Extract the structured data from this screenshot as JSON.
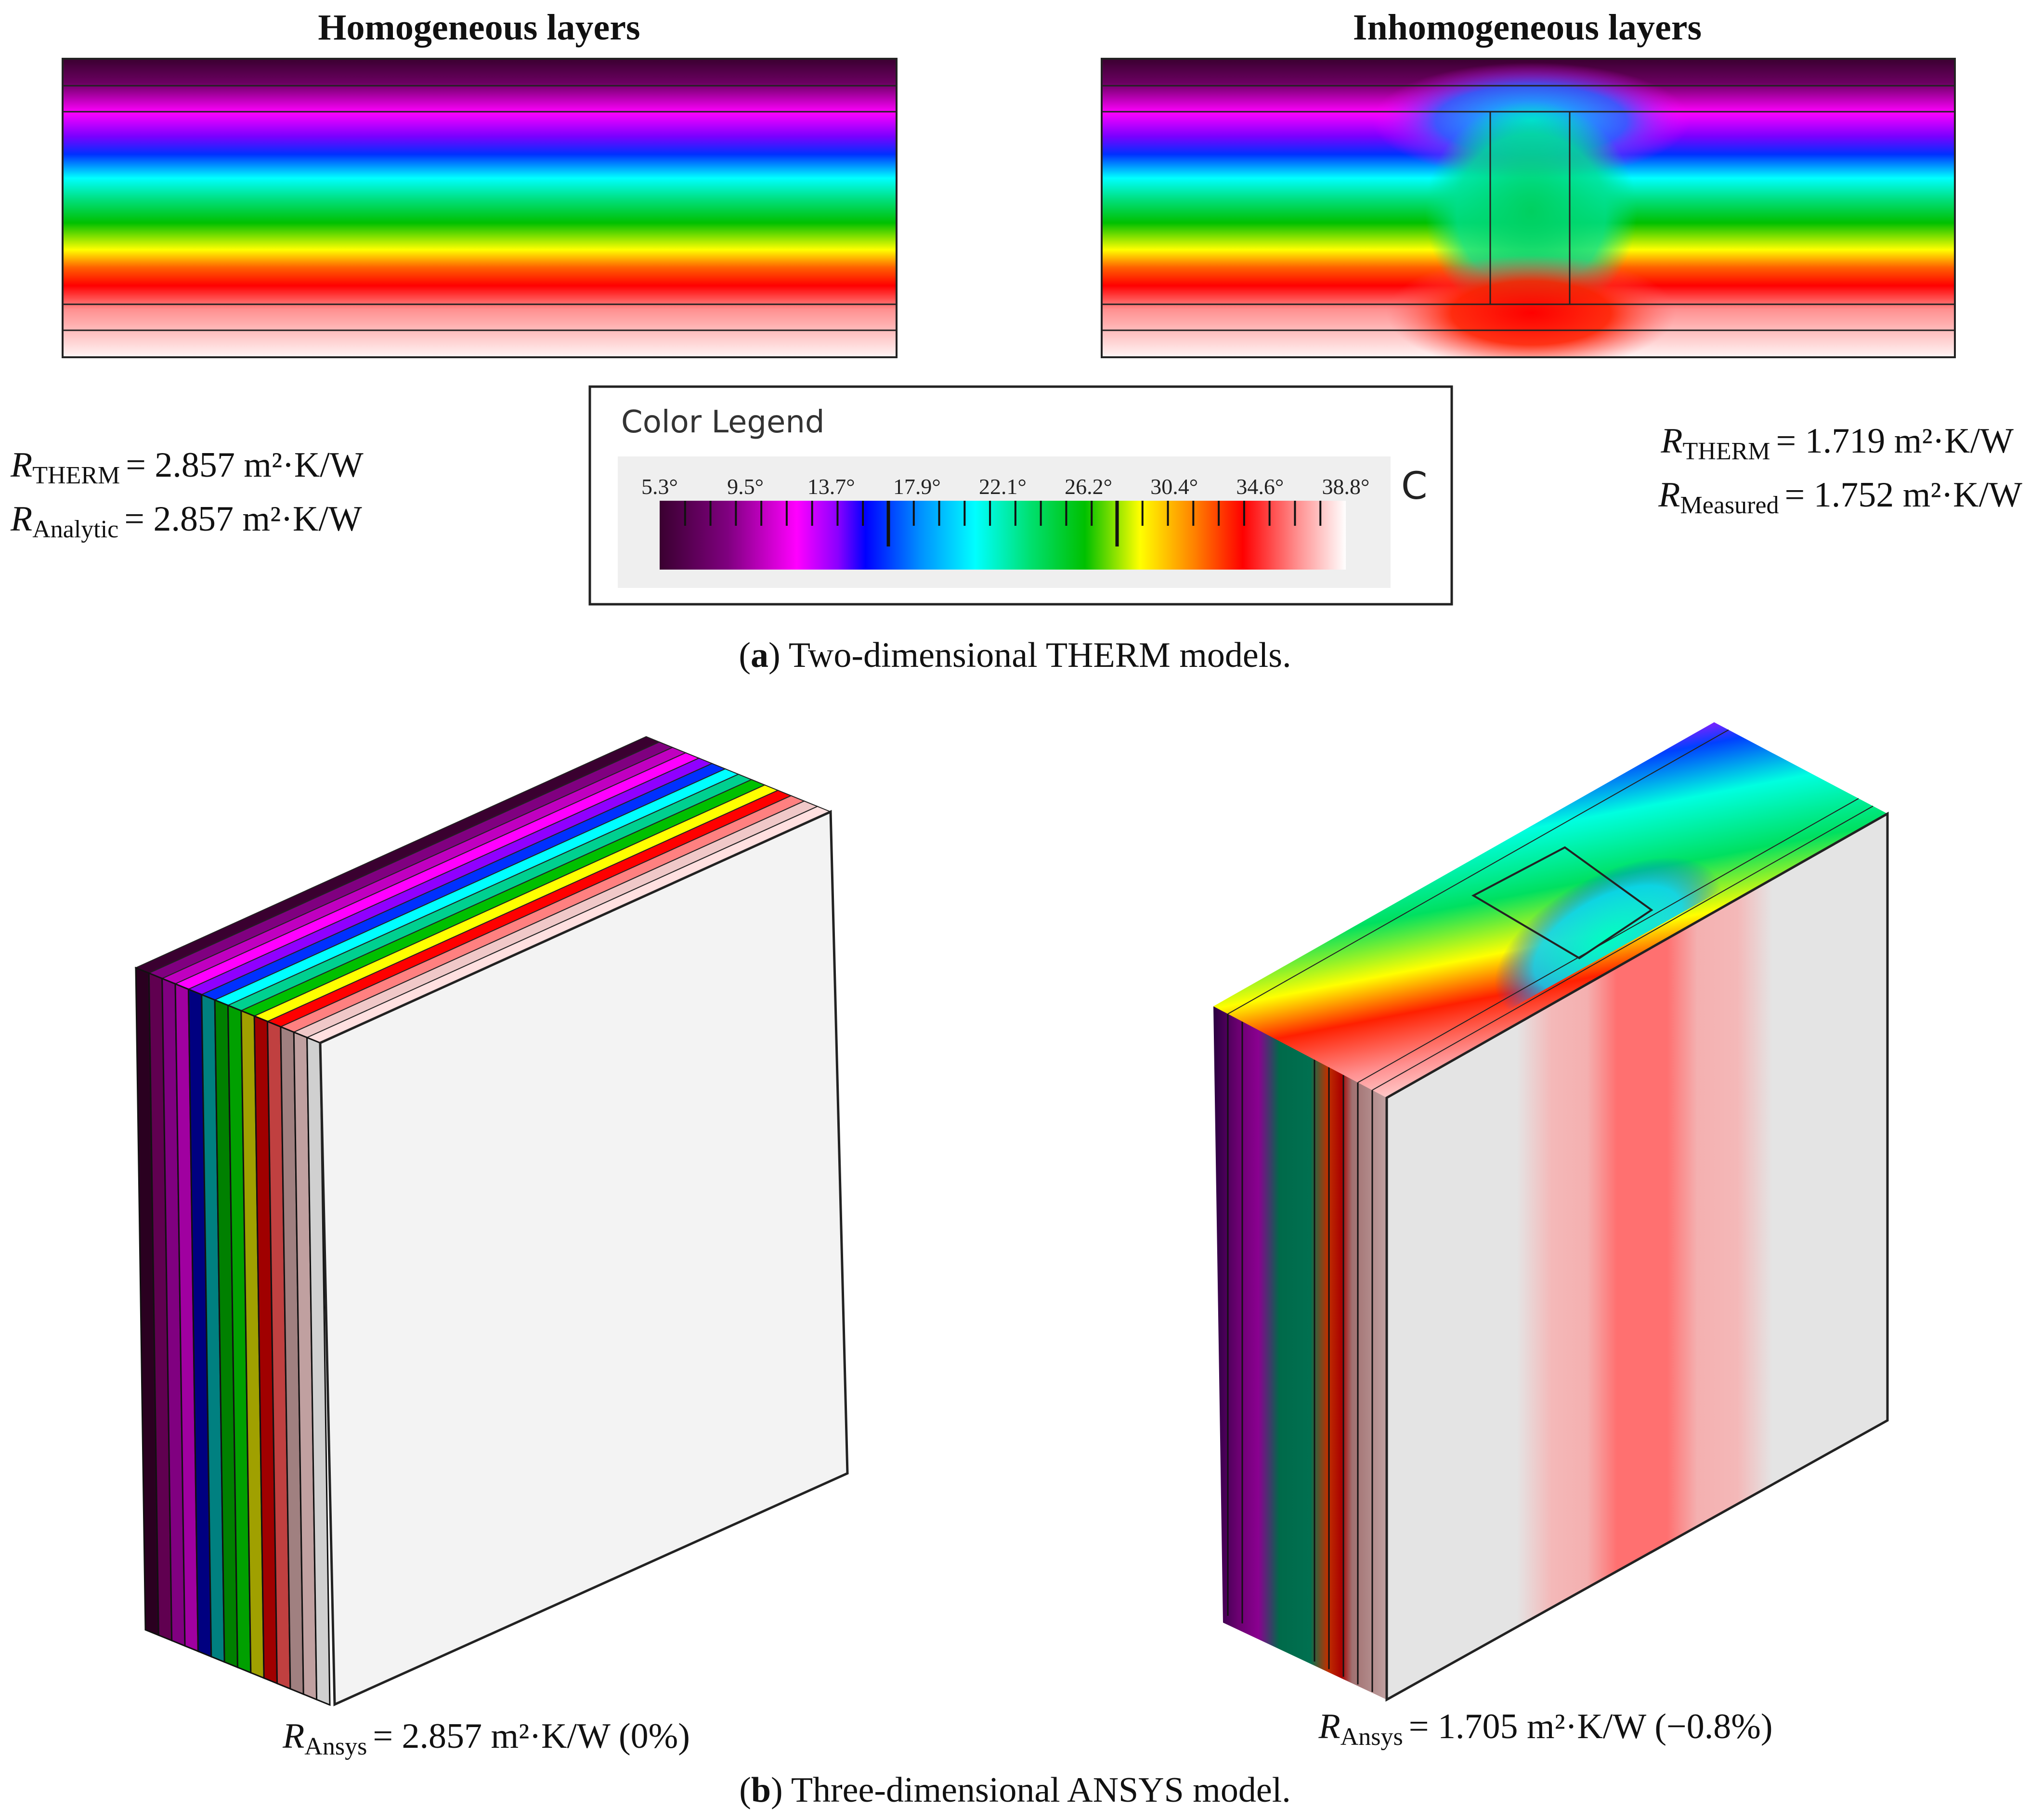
{
  "panel_a": {
    "left_title": "Homogeneous layers",
    "right_title": "Inhomogeneous layers",
    "left_results": [
      {
        "symbol": "R",
        "subscript": "THERM",
        "value": "= 2.857 m²·K/W"
      },
      {
        "symbol": "R",
        "subscript": "Analytic",
        "value": "= 2.857 m²·K/W"
      }
    ],
    "right_results": [
      {
        "symbol": "R",
        "subscript": "THERM",
        "value": "= 1.719 m²·K/W"
      },
      {
        "symbol": "R",
        "subscript": "Measured",
        "value": "= 1.752 m²·K/W"
      }
    ],
    "legend": {
      "title": "Color Legend",
      "unit": "C",
      "ticks": [
        "5.3°",
        "9.5°",
        "13.7°",
        "17.9°",
        "22.1°",
        "26.2°",
        "30.4°",
        "34.6°",
        "38.8°"
      ]
    },
    "caption": {
      "letter": "a",
      "text": ") Two-dimensional THERM models."
    }
  },
  "panel_b": {
    "left_result": {
      "symbol": "R",
      "subscript": "Ansys",
      "value": "= 2.857 m²·K/W (0%)"
    },
    "right_result": {
      "symbol": "R",
      "subscript": "Ansys",
      "value": "= 1.705 m²·K/W (−0.8%)"
    },
    "caption": {
      "letter": "b",
      "text": ") Three-dimensional ANSYS model."
    }
  },
  "colors": {
    "scale": [
      "#3a0030",
      "#700070",
      "#ff00ff",
      "#8a00ff",
      "#0000ff",
      "#00ffff",
      "#00e070",
      "#00c000",
      "#ffff00",
      "#ff8000",
      "#ff0000",
      "#ff9090",
      "#ffffff"
    ]
  }
}
